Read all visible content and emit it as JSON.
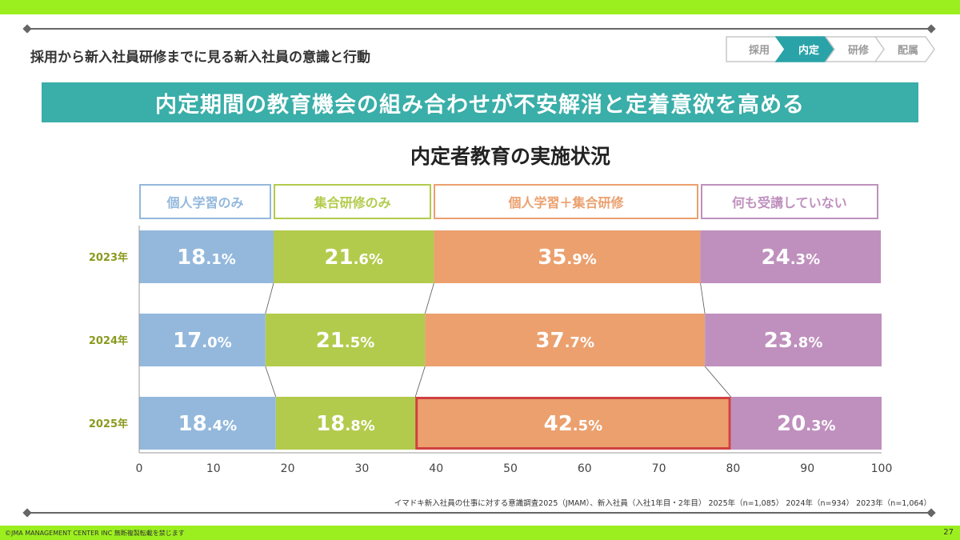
{
  "page": {
    "subtitle": "採用から新入社員研修までに見る新入社員の意識と行動",
    "banner": "内定期間の教育機会の組み合わせが不安解消と定着意欲を高める",
    "source": "イマドキ新入社員の仕事に対する意識調査2025（JMAM）、新入社員（入社1年目・2年目）  2025年（n=1,085）  2024年（n=934）  2023年（n=1,064）",
    "copyright": "©JMA MANAGEMENT CENTER INC  無断複製転載を禁じます",
    "page_number": "27"
  },
  "steps": [
    {
      "label": "採用",
      "active": false
    },
    {
      "label": "内定",
      "active": true
    },
    {
      "label": "研修",
      "active": false
    },
    {
      "label": "配属",
      "active": false
    }
  ],
  "colors": {
    "accent": "#9bef1e",
    "banner": "#3aaea8",
    "step_active": "#2aa3a8",
    "highlight": "#d04040"
  },
  "chart_data": {
    "type": "bar",
    "orientation": "horizontal",
    "stacked": true,
    "title": "内定者教育の実施状況",
    "categories": [
      "2023年",
      "2024年",
      "2025年"
    ],
    "series": [
      {
        "name": "個人学習のみ",
        "color": "#93b8dc",
        "values": [
          18.1,
          17.0,
          18.4
        ]
      },
      {
        "name": "集合研修のみ",
        "color": "#b2cb4c",
        "values": [
          21.6,
          21.5,
          18.8
        ]
      },
      {
        "name": "個人学習＋集合研修",
        "color": "#eba06e",
        "values": [
          35.9,
          37.7,
          42.5
        ]
      },
      {
        "name": "何も受講していない",
        "color": "#bf90be",
        "values": [
          24.3,
          23.8,
          20.3
        ]
      }
    ],
    "xlim": [
      0,
      100
    ],
    "xticks": [
      "0",
      "10",
      "20",
      "30",
      "40",
      "50",
      "60",
      "70",
      "80",
      "90",
      "100"
    ],
    "highlight": {
      "category": "2025年",
      "series": "個人学習＋集合研修"
    },
    "legend_position": "top",
    "grid": false
  }
}
